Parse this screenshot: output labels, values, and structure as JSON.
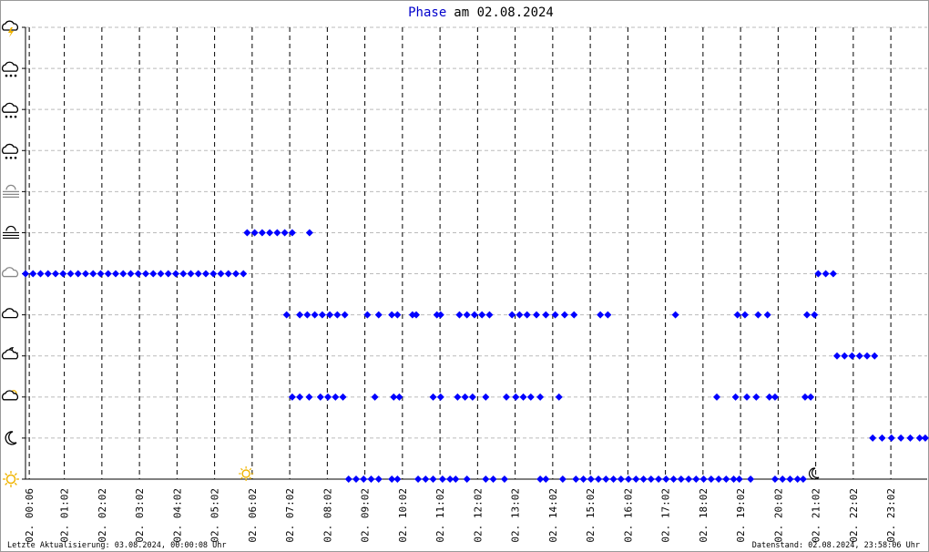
{
  "chart_data": {
    "type": "scatter",
    "title_series": "Phase",
    "title": "am 02.08.2024",
    "footer_left": "Letzte Aktualisierung: 03.08.2024, 00:00:08 Uhr",
    "footer_right": "Datenstand: 02.08.2024, 23:58:06 Uhr",
    "xlim": [
      0,
      24
    ],
    "ylim": [
      0,
      11
    ],
    "yticks": [
      0,
      1,
      2,
      3,
      4,
      5,
      6,
      7,
      8,
      9,
      10,
      11
    ],
    "grid": true,
    "sunrise": 5.87,
    "sunset": 20.97,
    "xticks": [
      {
        "value": 0.1,
        "label": "02. 00:06"
      },
      {
        "value": 1.033,
        "label": "02. 01:02"
      },
      {
        "value": 2.033,
        "label": "02. 02:02"
      },
      {
        "value": 3.033,
        "label": "02. 03:02"
      },
      {
        "value": 4.033,
        "label": "02. 04:02"
      },
      {
        "value": 5.033,
        "label": "02. 05:02"
      },
      {
        "value": 6.033,
        "label": "02. 06:02"
      },
      {
        "value": 7.033,
        "label": "02. 07:02"
      },
      {
        "value": 8.033,
        "label": "02. 08:02"
      },
      {
        "value": 9.033,
        "label": "02. 09:02"
      },
      {
        "value": 10.033,
        "label": "02. 10:02"
      },
      {
        "value": 11.033,
        "label": "02. 11:02"
      },
      {
        "value": 12.033,
        "label": "02. 12:02"
      },
      {
        "value": 13.033,
        "label": "02. 13:02"
      },
      {
        "value": 14.033,
        "label": "02. 14:02"
      },
      {
        "value": 15.033,
        "label": "02. 15:02"
      },
      {
        "value": 16.033,
        "label": "02. 16:02"
      },
      {
        "value": 17.033,
        "label": "02. 17:02"
      },
      {
        "value": 18.033,
        "label": "02. 18:02"
      },
      {
        "value": 19.033,
        "label": "02. 19:02"
      },
      {
        "value": 20.033,
        "label": "02. 20:02"
      },
      {
        "value": 21.033,
        "label": "02. 21:02"
      },
      {
        "value": 22.033,
        "label": "02. 22:02"
      },
      {
        "value": 23.033,
        "label": "02. 23:02"
      }
    ],
    "series": [
      {
        "color": "#0000ff",
        "level": 5,
        "x": [
          0,
          0.2,
          0.4,
          0.6,
          0.8,
          1,
          1.2,
          1.4,
          1.6,
          1.8,
          2,
          2.2,
          2.4,
          2.6,
          2.8,
          3,
          3.2,
          3.4,
          3.6,
          3.8,
          4,
          4.2,
          4.4,
          4.6,
          4.8,
          5,
          5.2,
          5.4,
          5.6,
          5.8,
          21.1,
          21.3,
          21.5
        ]
      },
      {
        "color": "#0000ff",
        "level": 6,
        "x": [
          5.9,
          6.1,
          6.3,
          6.5,
          6.7,
          6.9,
          7.1,
          7.56
        ]
      },
      {
        "color": "#0000ff",
        "level": 4,
        "x": [
          6.95,
          7.3,
          7.5,
          7.7,
          7.9,
          8.1,
          8.3,
          8.5,
          9.1,
          9.4,
          9.75,
          9.9,
          10.3,
          10.4,
          10.95,
          11.05,
          11.55,
          11.75,
          11.95,
          12.15,
          12.35,
          12.95,
          13.15,
          13.35,
          13.6,
          13.85,
          14.1,
          14.35,
          14.6,
          15.3,
          15.5,
          17.3,
          18.95,
          19.15,
          19.5,
          19.75,
          20.8,
          21.0
        ]
      },
      {
        "color": "#0000ff",
        "level": 3,
        "x": [
          21.6,
          21.8,
          22.0,
          22.2,
          22.4,
          22.6
        ]
      },
      {
        "color": "#0000ff",
        "level": 2,
        "x": [
          7.1,
          7.3,
          7.55,
          7.85,
          8.05,
          8.25,
          8.45,
          9.3,
          9.8,
          9.95,
          10.85,
          11.05,
          11.5,
          11.7,
          11.9,
          12.25,
          12.8,
          13.05,
          13.25,
          13.45,
          13.7,
          14.2,
          18.4,
          18.9,
          19.2,
          19.45,
          19.8,
          19.95,
          20.75,
          20.9
        ]
      },
      {
        "color": "#0000ff",
        "level": 1,
        "x": [
          22.55,
          22.8,
          23.05,
          23.3,
          23.55,
          23.8,
          23.95
        ]
      },
      {
        "color": "#0000ff",
        "level": 0,
        "x": [
          8.6,
          8.8,
          9.0,
          9.2,
          9.4,
          9.75,
          9.9,
          10.45,
          10.65,
          10.85,
          11.1,
          11.3,
          11.45,
          11.75,
          12.25,
          12.45,
          12.75,
          13.7,
          13.85,
          14.3,
          14.65,
          14.85,
          15.05,
          15.25,
          15.45,
          15.65,
          15.85,
          16.05,
          16.25,
          16.45,
          16.65,
          16.85,
          17.05,
          17.25,
          17.45,
          17.65,
          17.85,
          18.05,
          18.25,
          18.45,
          18.65,
          18.85,
          19.0,
          19.3,
          19.95,
          20.15,
          20.35,
          20.55,
          20.7
        ]
      }
    ]
  }
}
